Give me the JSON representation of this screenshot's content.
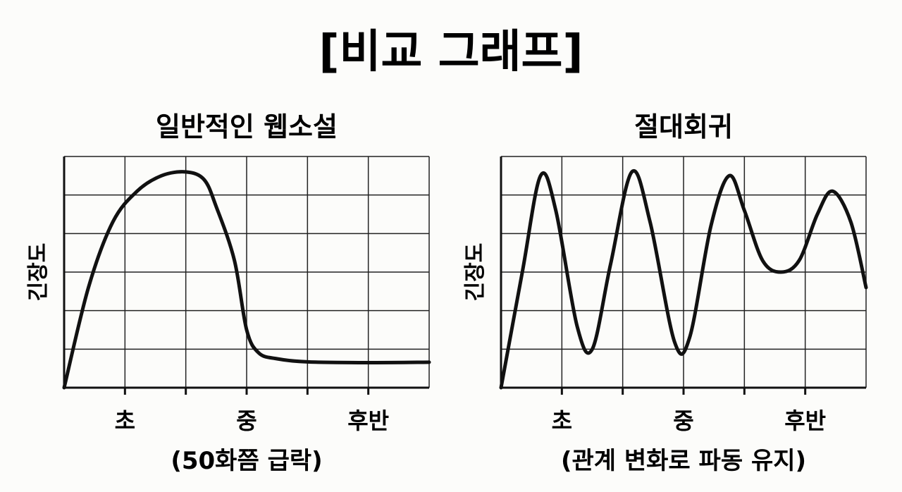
{
  "page": {
    "title": "[비교 그래프]"
  },
  "chart_data": [
    {
      "type": "line",
      "title": "일반적인 웹소설",
      "ylabel": "긴장도",
      "xlabel": "(50화쯤 급락)",
      "categories": [
        "초",
        "중",
        "후반"
      ],
      "xlim": [
        0,
        6
      ],
      "ylim": [
        0,
        6
      ],
      "grid": true,
      "series": [
        {
          "x": [
            0,
            0.4,
            0.8,
            1.2,
            1.6,
            2.0,
            2.3,
            2.5,
            2.8,
            3.0,
            3.2,
            3.5,
            4.0,
            5.0,
            6.0
          ],
          "y": [
            0,
            2.6,
            4.3,
            5.1,
            5.5,
            5.6,
            5.4,
            4.7,
            3.3,
            1.5,
            0.9,
            0.75,
            0.67,
            0.65,
            0.66
          ]
        }
      ]
    },
    {
      "type": "line",
      "title": "절대회귀",
      "ylabel": "긴장도",
      "xlabel": "(관계 변화로 파동 유지)",
      "categories": [
        "초",
        "중",
        "후반"
      ],
      "xlim": [
        0,
        6
      ],
      "ylim": [
        0,
        6
      ],
      "grid": true,
      "series": [
        {
          "x": [
            0,
            0.35,
            0.65,
            0.9,
            1.25,
            1.5,
            1.8,
            2.15,
            2.45,
            2.85,
            3.1,
            3.45,
            3.75,
            4.0,
            4.3,
            4.6,
            4.9,
            5.2,
            5.45,
            5.75,
            6.0
          ],
          "y": [
            0,
            3.0,
            5.5,
            4.6,
            1.6,
            1.0,
            3.2,
            5.6,
            4.3,
            1.2,
            1.3,
            4.2,
            5.5,
            4.6,
            3.3,
            3.0,
            3.3,
            4.5,
            5.1,
            4.3,
            2.6
          ]
        }
      ]
    }
  ]
}
